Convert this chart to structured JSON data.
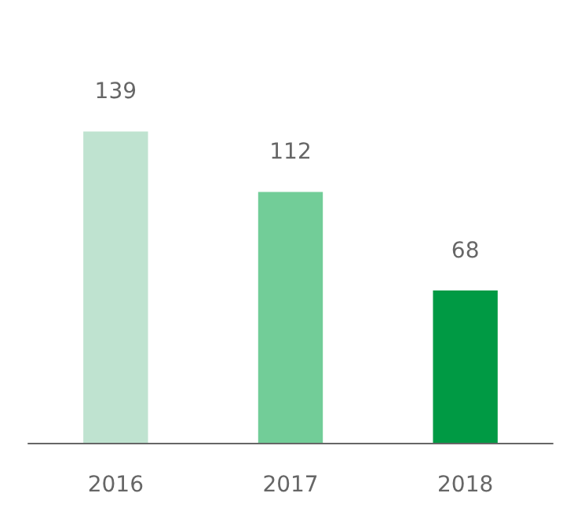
{
  "chart_data": {
    "type": "bar",
    "categories": [
      "2016",
      "2017",
      "2018"
    ],
    "values": [
      139,
      112,
      68
    ],
    "colors": [
      "#bfe3d0",
      "#72cd98",
      "#009a44"
    ],
    "data_labels": true,
    "grid": false
  }
}
